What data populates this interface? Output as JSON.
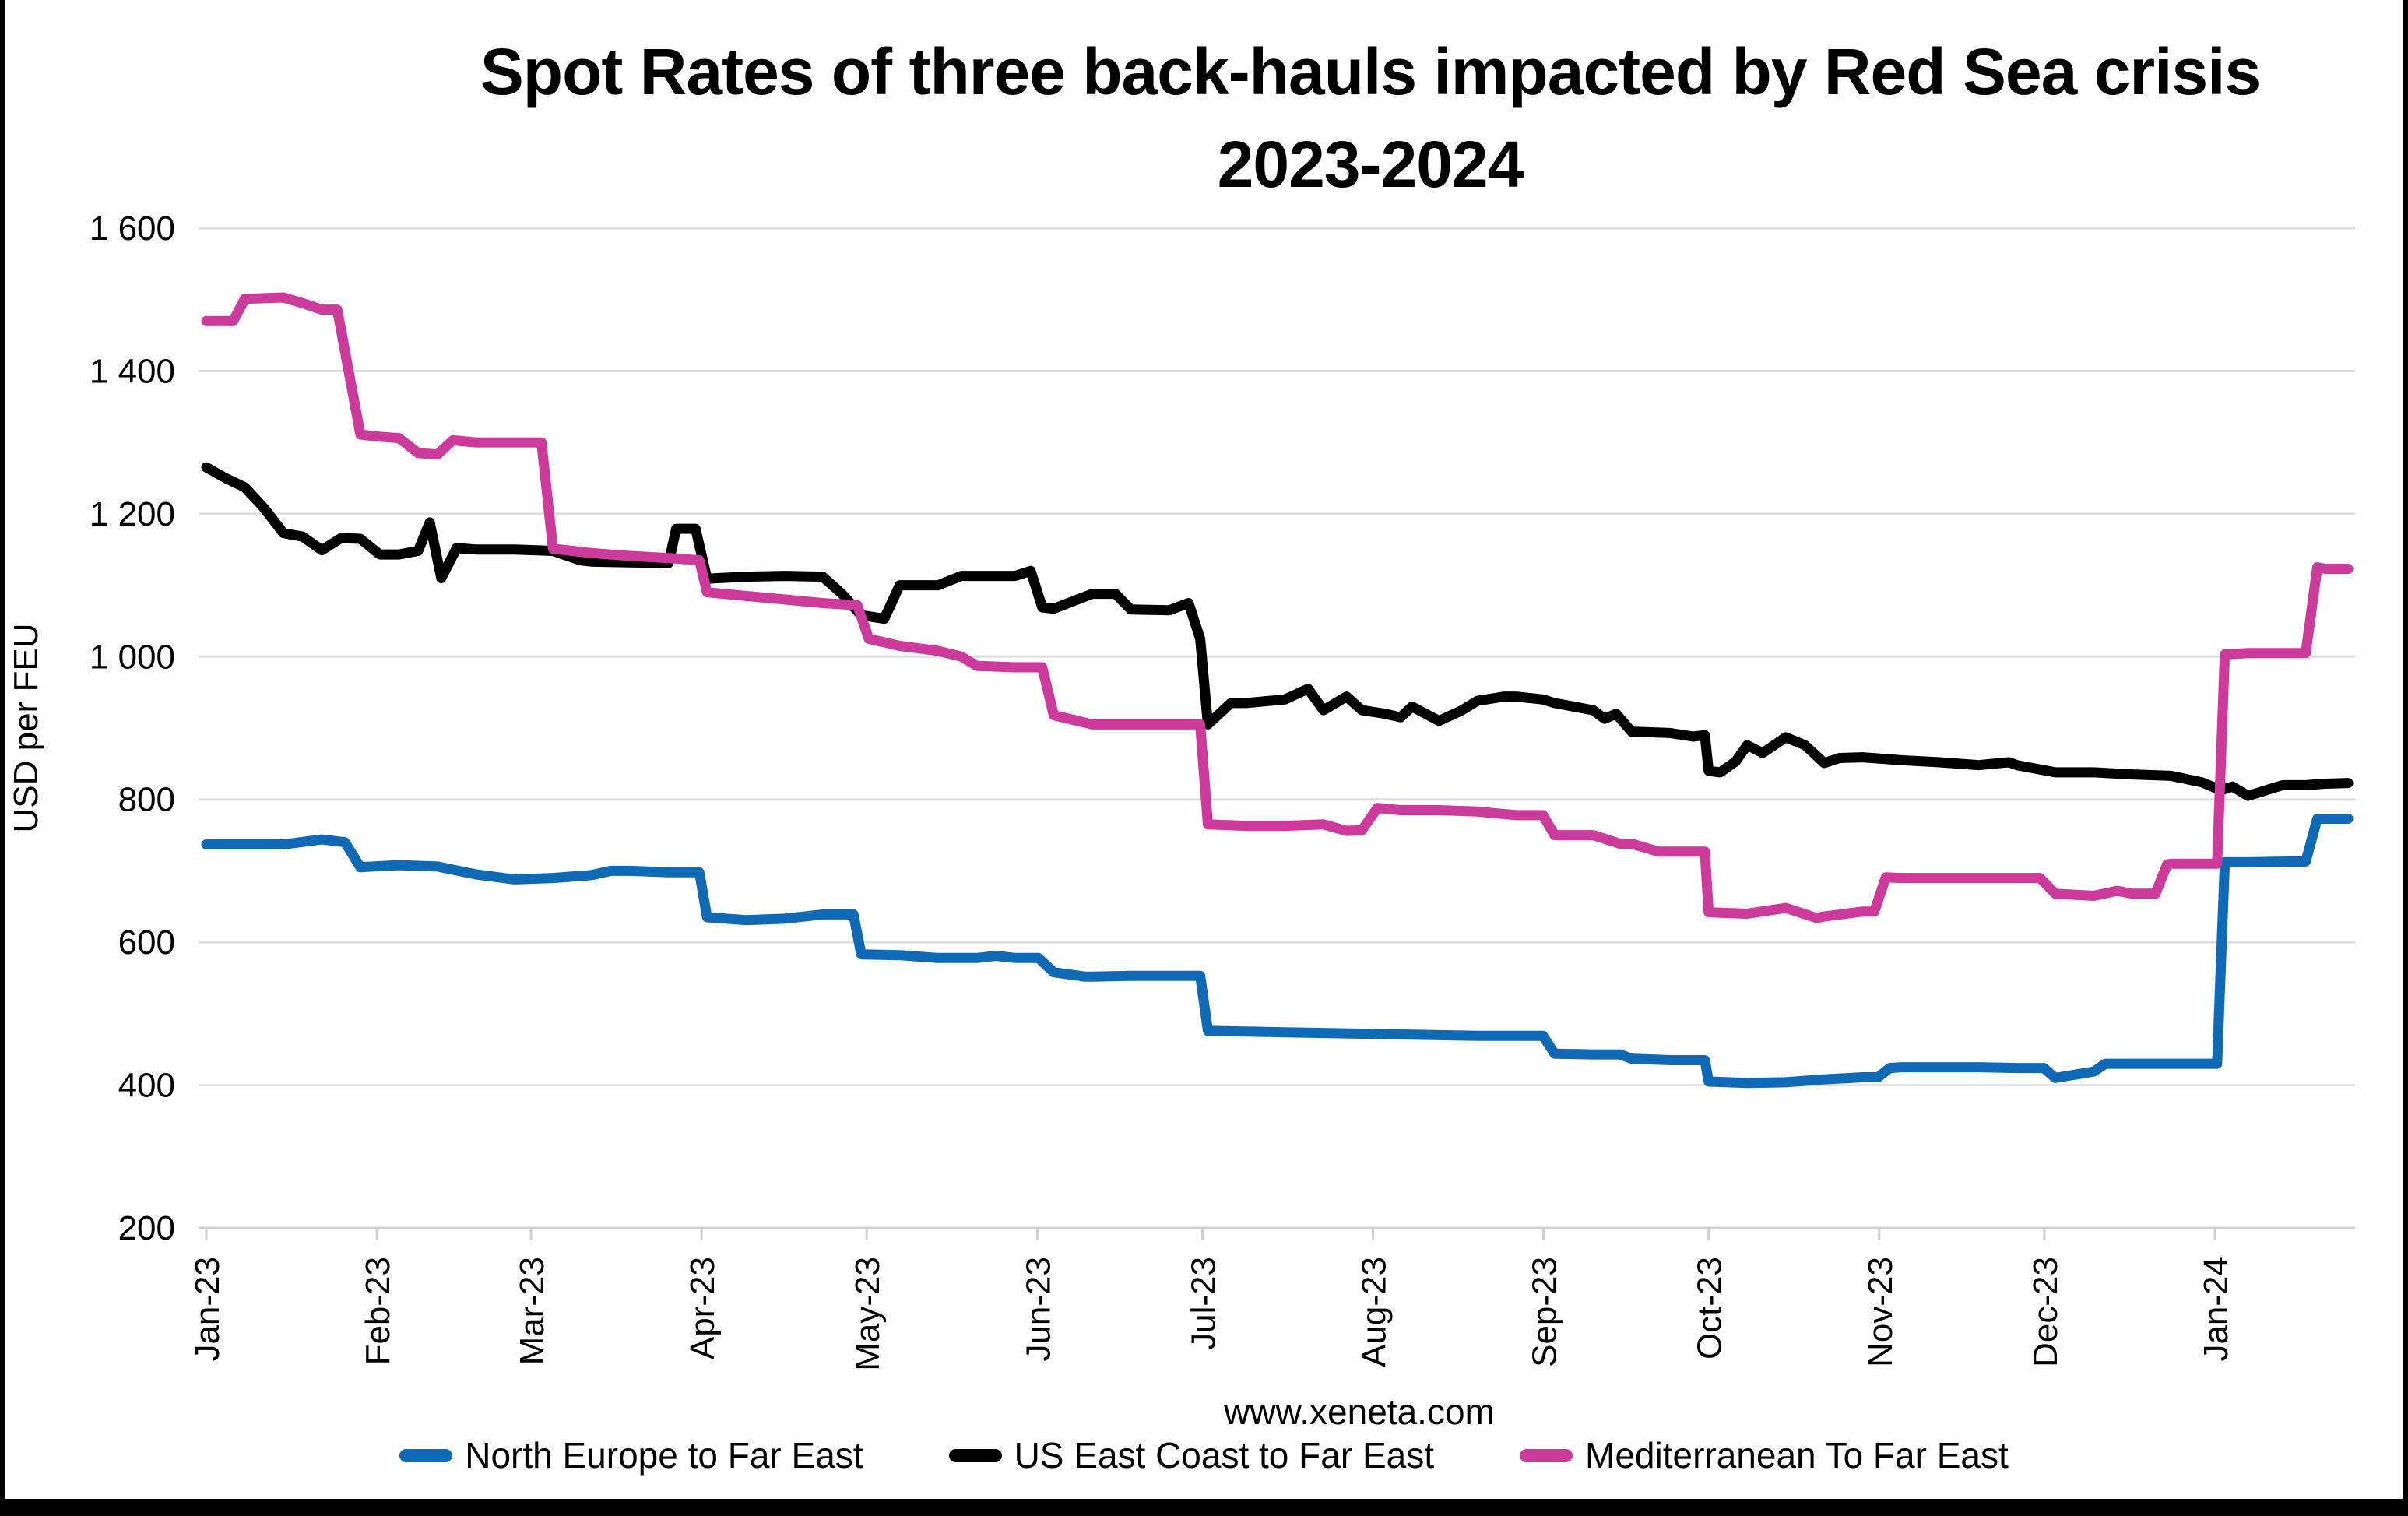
{
  "title": {
    "line1": "Spot Rates of three back-hauls impacted by Red Sea crisis",
    "line2": "2023-2024"
  },
  "footer": {
    "website": "www.xeneta.com"
  },
  "colors": {
    "north_europe": "#1069b4",
    "us_east_coast": "#000000",
    "mediterranean": "#cc3a9c",
    "gridline": "#dedede",
    "axis": "#cfcfcf",
    "text": "#000000"
  },
  "chart_data": {
    "type": "line",
    "title": "Spot Rates of three back-hauls impacted by Red Sea crisis 2023-2024",
    "ylabel": "USD per FEU",
    "ylim": [
      200,
      1600
    ],
    "ytick_step": 200,
    "ytick_labels": [
      "1 600",
      "1 400",
      "1 200",
      "1 000",
      "800",
      "600",
      "400",
      "200"
    ],
    "ytick_values": [
      1600,
      1400,
      1200,
      1000,
      800,
      600,
      400,
      200
    ],
    "xtick_labels": [
      "Jan-23",
      "Feb-23",
      "Mar-23",
      "Apr-23",
      "May-23",
      "Jun-23",
      "Jul-23",
      "Aug-23",
      "Sep-23",
      "Oct-23",
      "Nov-23",
      "Dec-23",
      "Jan-24"
    ],
    "xtick_day_offsets": [
      0,
      31,
      59,
      90,
      120,
      151,
      181,
      212,
      243,
      273,
      304,
      334,
      365
    ],
    "x_unit": "weeks since 2023-01-01",
    "grid": true,
    "legend_position": "bottom",
    "series": [
      {
        "name": "North Europe to Far East",
        "color": "#1069b4",
        "points": [
          [
            0,
            737
          ],
          [
            1,
            737
          ],
          [
            2,
            737
          ],
          [
            3,
            744
          ],
          [
            3.6,
            740
          ],
          [
            4,
            705
          ],
          [
            5,
            708
          ],
          [
            6,
            706
          ],
          [
            7,
            695
          ],
          [
            8,
            688
          ],
          [
            9,
            690
          ],
          [
            10,
            694
          ],
          [
            10.5,
            700
          ],
          [
            11,
            700
          ],
          [
            12,
            698
          ],
          [
            12.8,
            698
          ],
          [
            13,
            635
          ],
          [
            14,
            631
          ],
          [
            15,
            633
          ],
          [
            16,
            639
          ],
          [
            16.8,
            639
          ],
          [
            17,
            583
          ],
          [
            18,
            582
          ],
          [
            19,
            578
          ],
          [
            20,
            578
          ],
          [
            20.5,
            581
          ],
          [
            21,
            578
          ],
          [
            21.6,
            578
          ],
          [
            22,
            558
          ],
          [
            22.8,
            552
          ],
          [
            23,
            552
          ],
          [
            24,
            553
          ],
          [
            25,
            553
          ],
          [
            25.8,
            553
          ],
          [
            26,
            476
          ],
          [
            27,
            475
          ],
          [
            28,
            474
          ],
          [
            29,
            473
          ],
          [
            30,
            472
          ],
          [
            31,
            471
          ],
          [
            32,
            470
          ],
          [
            33,
            469
          ],
          [
            34,
            469
          ],
          [
            34.7,
            469
          ],
          [
            35,
            444
          ],
          [
            36,
            443
          ],
          [
            36.7,
            443
          ],
          [
            37,
            437
          ],
          [
            38,
            435
          ],
          [
            38.9,
            435
          ],
          [
            39,
            405
          ],
          [
            40,
            403
          ],
          [
            41,
            404
          ],
          [
            42,
            408
          ],
          [
            43,
            411
          ],
          [
            43.4,
            411
          ],
          [
            43.7,
            424
          ],
          [
            44,
            425
          ],
          [
            45,
            425
          ],
          [
            46,
            425
          ],
          [
            47,
            424
          ],
          [
            47.7,
            424
          ],
          [
            48,
            410
          ],
          [
            49,
            419
          ],
          [
            49.3,
            430
          ],
          [
            50,
            430
          ],
          [
            51,
            430
          ],
          [
            52,
            430
          ],
          [
            52.2,
            430
          ],
          [
            52.4,
            712
          ],
          [
            53,
            712
          ],
          [
            54,
            713
          ],
          [
            54.5,
            713
          ],
          [
            54.8,
            773
          ],
          [
            55,
            773
          ],
          [
            55.6,
            773
          ]
        ]
      },
      {
        "name": "US East Coast to Far East",
        "color": "#000000",
        "points": [
          [
            0,
            1265
          ],
          [
            0.5,
            1250
          ],
          [
            1,
            1237
          ],
          [
            1.5,
            1208
          ],
          [
            2,
            1173
          ],
          [
            2.5,
            1168
          ],
          [
            3,
            1149
          ],
          [
            3.5,
            1166
          ],
          [
            4,
            1165
          ],
          [
            4.5,
            1143
          ],
          [
            5,
            1143
          ],
          [
            5.5,
            1148
          ],
          [
            5.8,
            1188
          ],
          [
            6.1,
            1110
          ],
          [
            6.5,
            1152
          ],
          [
            7,
            1150
          ],
          [
            8,
            1150
          ],
          [
            9,
            1148
          ],
          [
            9.7,
            1135
          ],
          [
            10,
            1133
          ],
          [
            11,
            1132
          ],
          [
            12,
            1131
          ],
          [
            12.2,
            1179
          ],
          [
            12.7,
            1179
          ],
          [
            13,
            1109
          ],
          [
            14,
            1112
          ],
          [
            15,
            1113
          ],
          [
            16,
            1112
          ],
          [
            16.5,
            1088
          ],
          [
            17,
            1058
          ],
          [
            17.6,
            1053
          ],
          [
            18,
            1100
          ],
          [
            19,
            1100
          ],
          [
            19.6,
            1113
          ],
          [
            20,
            1113
          ],
          [
            21,
            1113
          ],
          [
            21.4,
            1120
          ],
          [
            21.7,
            1069
          ],
          [
            22,
            1067
          ],
          [
            23,
            1088
          ],
          [
            23.6,
            1088
          ],
          [
            24,
            1066
          ],
          [
            25,
            1065
          ],
          [
            25.5,
            1075
          ],
          [
            25.8,
            1025
          ],
          [
            26,
            905
          ],
          [
            26.6,
            935
          ],
          [
            27,
            935
          ],
          [
            28,
            940
          ],
          [
            28.6,
            955
          ],
          [
            29,
            925
          ],
          [
            29.6,
            944
          ],
          [
            30,
            925
          ],
          [
            30.6,
            920
          ],
          [
            31,
            915
          ],
          [
            31.3,
            930
          ],
          [
            32,
            910
          ],
          [
            32.6,
            925
          ],
          [
            33,
            938
          ],
          [
            33.7,
            944
          ],
          [
            34,
            944
          ],
          [
            34.7,
            940
          ],
          [
            35,
            935
          ],
          [
            36,
            925
          ],
          [
            36.3,
            913
          ],
          [
            36.6,
            920
          ],
          [
            37,
            895
          ],
          [
            38,
            893
          ],
          [
            38.6,
            888
          ],
          [
            38.9,
            890
          ],
          [
            39,
            840
          ],
          [
            39.3,
            838
          ],
          [
            39.7,
            853
          ],
          [
            40,
            876
          ],
          [
            40.4,
            865
          ],
          [
            41,
            887
          ],
          [
            41.5,
            876
          ],
          [
            42,
            851
          ],
          [
            42.4,
            858
          ],
          [
            43,
            859
          ],
          [
            44,
            855
          ],
          [
            45,
            852
          ],
          [
            46,
            848
          ],
          [
            46.8,
            852
          ],
          [
            47,
            848
          ],
          [
            48,
            838
          ],
          [
            49,
            838
          ],
          [
            50,
            835
          ],
          [
            51,
            833
          ],
          [
            51.8,
            824
          ],
          [
            52.3,
            813
          ],
          [
            52.6,
            818
          ],
          [
            53,
            805
          ],
          [
            53.9,
            820
          ],
          [
            54.5,
            820
          ],
          [
            55,
            822
          ],
          [
            55.6,
            823
          ]
        ]
      },
      {
        "name": "Mediterranean To Far East",
        "color": "#cc3a9c",
        "points": [
          [
            0,
            1470
          ],
          [
            0.7,
            1470
          ],
          [
            1,
            1501
          ],
          [
            2,
            1503
          ],
          [
            2.5,
            1495
          ],
          [
            3,
            1486
          ],
          [
            3.4,
            1486
          ],
          [
            4,
            1311
          ],
          [
            4.5,
            1308
          ],
          [
            5,
            1306
          ],
          [
            5.5,
            1285
          ],
          [
            6,
            1283
          ],
          [
            6.4,
            1303
          ],
          [
            7,
            1300
          ],
          [
            8,
            1300
          ],
          [
            8.7,
            1300
          ],
          [
            9,
            1151
          ],
          [
            9.5,
            1148
          ],
          [
            10,
            1145
          ],
          [
            11,
            1141
          ],
          [
            12,
            1138
          ],
          [
            12.8,
            1135
          ],
          [
            13,
            1090
          ],
          [
            14,
            1085
          ],
          [
            15,
            1080
          ],
          [
            16,
            1075
          ],
          [
            16.9,
            1072
          ],
          [
            17.2,
            1025
          ],
          [
            18,
            1015
          ],
          [
            19,
            1008
          ],
          [
            19.6,
            1000
          ],
          [
            20,
            987
          ],
          [
            21,
            985
          ],
          [
            21.7,
            985
          ],
          [
            22,
            918
          ],
          [
            23,
            905
          ],
          [
            24,
            905
          ],
          [
            25,
            905
          ],
          [
            25.8,
            905
          ],
          [
            26,
            765
          ],
          [
            27,
            763
          ],
          [
            28,
            763
          ],
          [
            29,
            765
          ],
          [
            29.6,
            756
          ],
          [
            30,
            757
          ],
          [
            30.4,
            788
          ],
          [
            31,
            785
          ],
          [
            32,
            785
          ],
          [
            33,
            783
          ],
          [
            34,
            778
          ],
          [
            34.7,
            778
          ],
          [
            35,
            750
          ],
          [
            36,
            750
          ],
          [
            36.7,
            738
          ],
          [
            37,
            738
          ],
          [
            37.7,
            727
          ],
          [
            38,
            727
          ],
          [
            38.9,
            727
          ],
          [
            39,
            642
          ],
          [
            40,
            640
          ],
          [
            41,
            648
          ],
          [
            41.8,
            634
          ],
          [
            42,
            636
          ],
          [
            43,
            643
          ],
          [
            43.3,
            643
          ],
          [
            43.6,
            691
          ],
          [
            44,
            690
          ],
          [
            45,
            690
          ],
          [
            46,
            690
          ],
          [
            47,
            690
          ],
          [
            47.6,
            690
          ],
          [
            48,
            668
          ],
          [
            49,
            665
          ],
          [
            49.6,
            672
          ],
          [
            50,
            668
          ],
          [
            50.6,
            668
          ],
          [
            50.9,
            709
          ],
          [
            51,
            710
          ],
          [
            52,
            710
          ],
          [
            52.2,
            710
          ],
          [
            52.4,
            1003
          ],
          [
            53,
            1005
          ],
          [
            54,
            1005
          ],
          [
            54.5,
            1005
          ],
          [
            54.8,
            1125
          ],
          [
            55,
            1123
          ],
          [
            55.6,
            1123
          ]
        ]
      }
    ]
  }
}
